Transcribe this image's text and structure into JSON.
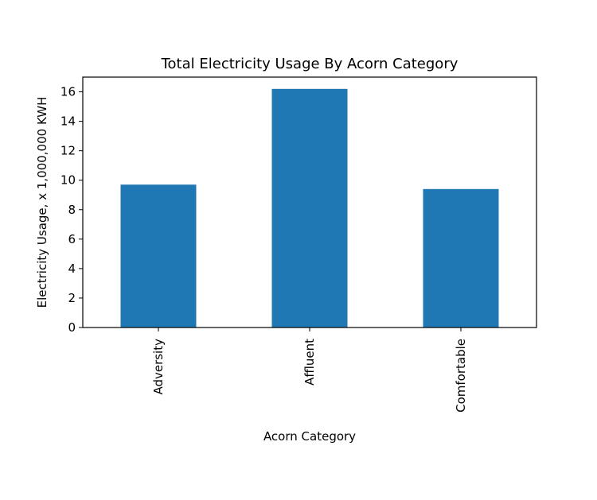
{
  "chart_data": {
    "type": "bar",
    "title": "Total Electricity Usage By Acorn Category",
    "xlabel": "Acorn Category",
    "ylabel": "Electricity Usage, x 1,000,000 KWH",
    "categories": [
      "Adversity",
      "Affluent",
      "Comfortable"
    ],
    "values": [
      9.7,
      16.2,
      9.4
    ],
    "ylim": [
      0,
      17
    ],
    "yticks": [
      "0",
      "2",
      "4",
      "6",
      "8",
      "10",
      "12",
      "14",
      "16"
    ],
    "grid": false,
    "bar_color": "#1f77b4",
    "xtick_rotation": "vertical"
  }
}
